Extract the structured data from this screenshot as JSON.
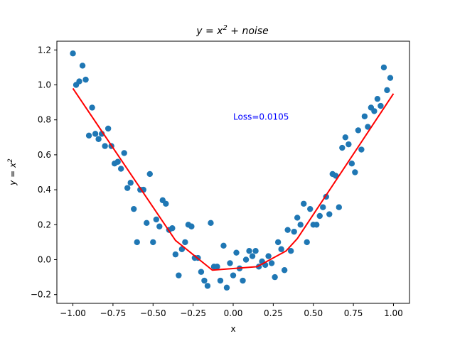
{
  "chart_data": {
    "type": "scatter",
    "title": "y = x",
    "title_sup": "2",
    "title_suffix": " + noise",
    "xlabel": "x",
    "ylabel": "y = x",
    "ylabel_sup": "2",
    "xlim": [
      -1.1,
      1.1
    ],
    "ylim": [
      -0.25,
      1.25
    ],
    "xticks": [
      -1.0,
      -0.75,
      -0.5,
      -0.25,
      0.0,
      0.25,
      0.5,
      0.75,
      1.0
    ],
    "xtick_labels": [
      "−1.00",
      "−0.75",
      "−0.50",
      "−0.25",
      "0.00",
      "0.25",
      "0.50",
      "0.75",
      "1.00"
    ],
    "yticks": [
      -0.2,
      0.0,
      0.2,
      0.4,
      0.6,
      0.8,
      1.0,
      1.2
    ],
    "ytick_labels": [
      "−0.2",
      "0.0",
      "0.2",
      "0.4",
      "0.6",
      "0.8",
      "1.0",
      "1.2"
    ],
    "grid": false,
    "annotation": {
      "text": "Loss=0.0105",
      "x": 0.0,
      "y": 0.8,
      "color": "#0000ff"
    },
    "scatter_color": "#1f77b4",
    "line_color": "#ff0000",
    "series": [
      {
        "kind": "scatter",
        "points": [
          [
            -1.0,
            1.18
          ],
          [
            -0.98,
            1.0
          ],
          [
            -0.96,
            1.02
          ],
          [
            -0.94,
            1.11
          ],
          [
            -0.92,
            1.03
          ],
          [
            -0.9,
            0.71
          ],
          [
            -0.88,
            0.87
          ],
          [
            -0.86,
            0.72
          ],
          [
            -0.84,
            0.69
          ],
          [
            -0.82,
            0.72
          ],
          [
            -0.8,
            0.65
          ],
          [
            -0.78,
            0.75
          ],
          [
            -0.76,
            0.65
          ],
          [
            -0.74,
            0.55
          ],
          [
            -0.72,
            0.56
          ],
          [
            -0.7,
            0.52
          ],
          [
            -0.68,
            0.61
          ],
          [
            -0.66,
            0.41
          ],
          [
            -0.64,
            0.44
          ],
          [
            -0.62,
            0.29
          ],
          [
            -0.6,
            0.1
          ],
          [
            -0.58,
            0.4
          ],
          [
            -0.56,
            0.4
          ],
          [
            -0.54,
            0.21
          ],
          [
            -0.52,
            0.49
          ],
          [
            -0.5,
            0.1
          ],
          [
            -0.48,
            0.23
          ],
          [
            -0.46,
            0.19
          ],
          [
            -0.44,
            0.34
          ],
          [
            -0.42,
            0.32
          ],
          [
            -0.4,
            0.17
          ],
          [
            -0.38,
            0.18
          ],
          [
            -0.36,
            0.03
          ],
          [
            -0.34,
            -0.09
          ],
          [
            -0.32,
            0.06
          ],
          [
            -0.3,
            0.1
          ],
          [
            -0.28,
            0.2
          ],
          [
            -0.26,
            0.19
          ],
          [
            -0.24,
            0.01
          ],
          [
            -0.22,
            0.01
          ],
          [
            -0.2,
            -0.07
          ],
          [
            -0.18,
            -0.12
          ],
          [
            -0.16,
            -0.15
          ],
          [
            -0.14,
            0.21
          ],
          [
            -0.12,
            -0.04
          ],
          [
            -0.1,
            -0.04
          ],
          [
            -0.08,
            -0.12
          ],
          [
            -0.06,
            0.08
          ],
          [
            -0.04,
            -0.16
          ],
          [
            -0.02,
            -0.02
          ],
          [
            0.0,
            -0.09
          ],
          [
            0.02,
            0.04
          ],
          [
            0.04,
            -0.05
          ],
          [
            0.06,
            -0.12
          ],
          [
            0.08,
            0.0
          ],
          [
            0.1,
            0.05
          ],
          [
            0.12,
            0.02
          ],
          [
            0.14,
            0.05
          ],
          [
            0.16,
            -0.04
          ],
          [
            0.18,
            -0.01
          ],
          [
            0.2,
            -0.03
          ],
          [
            0.22,
            0.02
          ],
          [
            0.24,
            -0.02
          ],
          [
            0.26,
            -0.1
          ],
          [
            0.28,
            0.1
          ],
          [
            0.3,
            0.06
          ],
          [
            0.32,
            -0.06
          ],
          [
            0.34,
            0.17
          ],
          [
            0.36,
            0.05
          ],
          [
            0.38,
            0.16
          ],
          [
            0.4,
            0.24
          ],
          [
            0.42,
            0.2
          ],
          [
            0.44,
            0.32
          ],
          [
            0.46,
            0.1
          ],
          [
            0.48,
            0.29
          ],
          [
            0.5,
            0.2
          ],
          [
            0.52,
            0.2
          ],
          [
            0.54,
            0.25
          ],
          [
            0.56,
            0.3
          ],
          [
            0.58,
            0.36
          ],
          [
            0.6,
            0.26
          ],
          [
            0.62,
            0.49
          ],
          [
            0.64,
            0.48
          ],
          [
            0.66,
            0.3
          ],
          [
            0.68,
            0.64
          ],
          [
            0.7,
            0.7
          ],
          [
            0.72,
            0.66
          ],
          [
            0.74,
            0.55
          ],
          [
            0.76,
            0.5
          ],
          [
            0.78,
            0.74
          ],
          [
            0.8,
            0.63
          ],
          [
            0.82,
            0.82
          ],
          [
            0.84,
            0.76
          ],
          [
            0.86,
            0.87
          ],
          [
            0.88,
            0.85
          ],
          [
            0.9,
            0.92
          ],
          [
            0.92,
            0.88
          ],
          [
            0.94,
            1.1
          ],
          [
            0.96,
            0.97
          ],
          [
            0.98,
            1.04
          ]
        ]
      },
      {
        "kind": "line",
        "points": [
          [
            -1.0,
            0.98
          ],
          [
            -0.36,
            0.11
          ],
          [
            -0.13,
            -0.06
          ],
          [
            0.15,
            -0.04
          ],
          [
            0.33,
            0.05
          ],
          [
            0.4,
            0.12
          ],
          [
            1.0,
            0.95
          ]
        ]
      }
    ]
  }
}
